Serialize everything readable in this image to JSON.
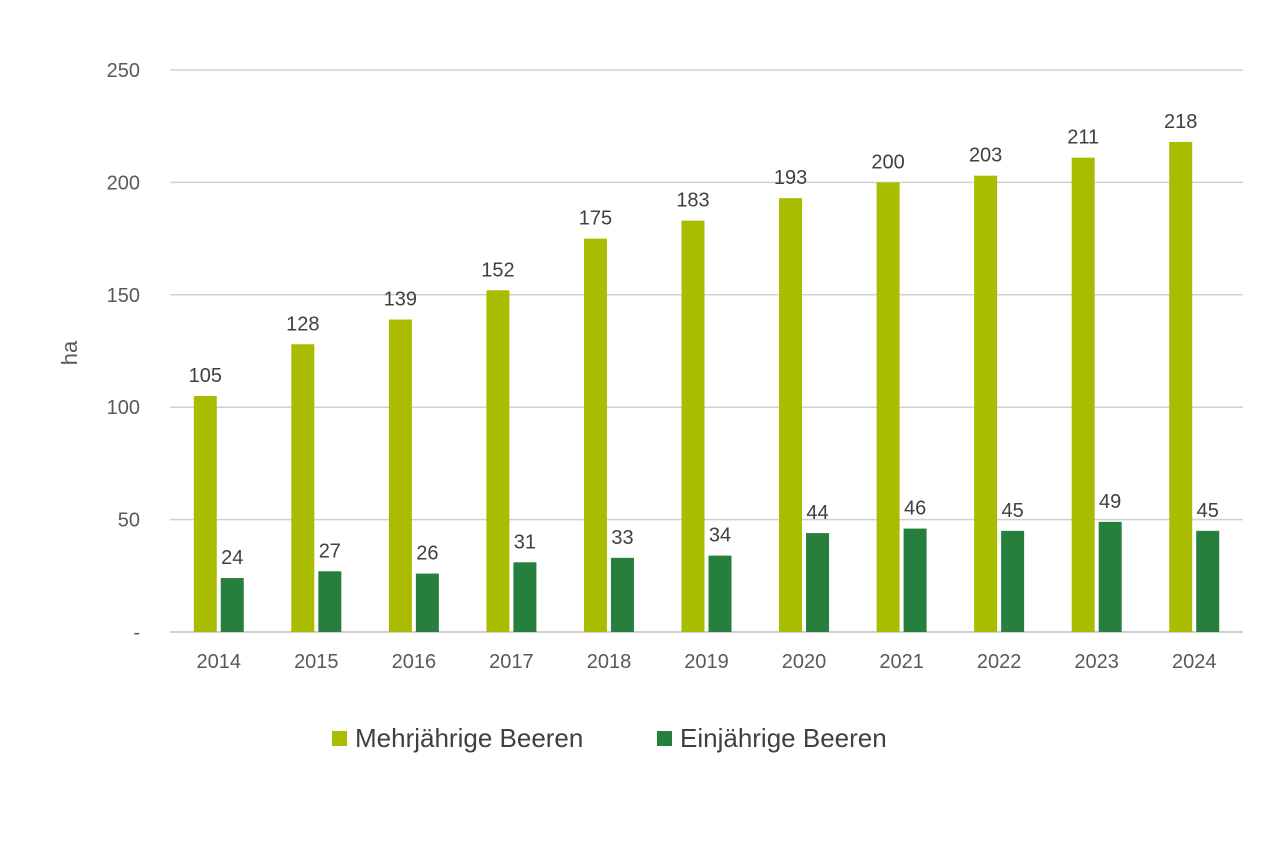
{
  "chart_data": {
    "type": "bar",
    "title": "",
    "xlabel": "",
    "ylabel": "ha",
    "ylim": [
      0,
      250
    ],
    "yticks": [
      0,
      50,
      100,
      150,
      200,
      250
    ],
    "ytick_labels": [
      "-",
      "50",
      "100",
      "150",
      "200",
      "250"
    ],
    "grid": true,
    "legend_position": "bottom",
    "categories": [
      "2014",
      "2015",
      "2016",
      "2017",
      "2018",
      "2019",
      "2020",
      "2021",
      "2022",
      "2023",
      "2024"
    ],
    "series": [
      {
        "name": "Mehrjährige Beeren",
        "color": "#aabc00",
        "values": [
          105,
          128,
          139,
          152,
          175,
          183,
          193,
          200,
          203,
          211,
          218
        ]
      },
      {
        "name": "Einjährige Beeren",
        "color": "#267f3c",
        "values": [
          24,
          27,
          26,
          31,
          33,
          34,
          44,
          46,
          45,
          49,
          45
        ]
      }
    ]
  }
}
